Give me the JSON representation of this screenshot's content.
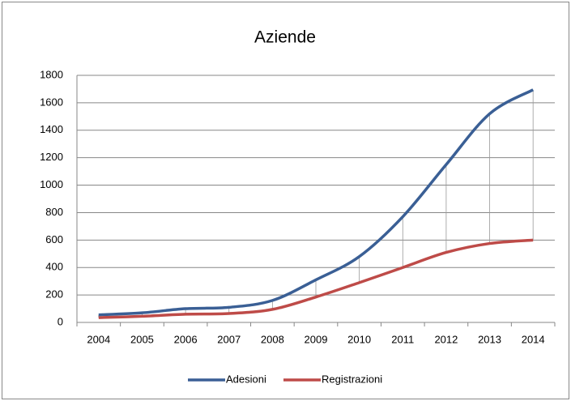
{
  "chart_data": {
    "type": "line",
    "title": "Aziende",
    "categories": [
      "2004",
      "2005",
      "2006",
      "2007",
      "2008",
      "2009",
      "2010",
      "2011",
      "2012",
      "2013",
      "2014"
    ],
    "series": [
      {
        "name": "Adesioni",
        "color": "#3a5f95",
        "values": [
          55,
          70,
          100,
          110,
          160,
          310,
          480,
          770,
          1150,
          1520,
          1695
        ]
      },
      {
        "name": "Registrazioni",
        "color": "#be4b48",
        "values": [
          35,
          45,
          60,
          65,
          95,
          185,
          290,
          400,
          510,
          575,
          600
        ]
      }
    ],
    "ylim": [
      0,
      1800
    ],
    "yticks": [
      0,
      200,
      400,
      600,
      800,
      1000,
      1200,
      1400,
      1600,
      1800
    ],
    "grid": true,
    "drop_lines": true,
    "legend": "bottom"
  }
}
